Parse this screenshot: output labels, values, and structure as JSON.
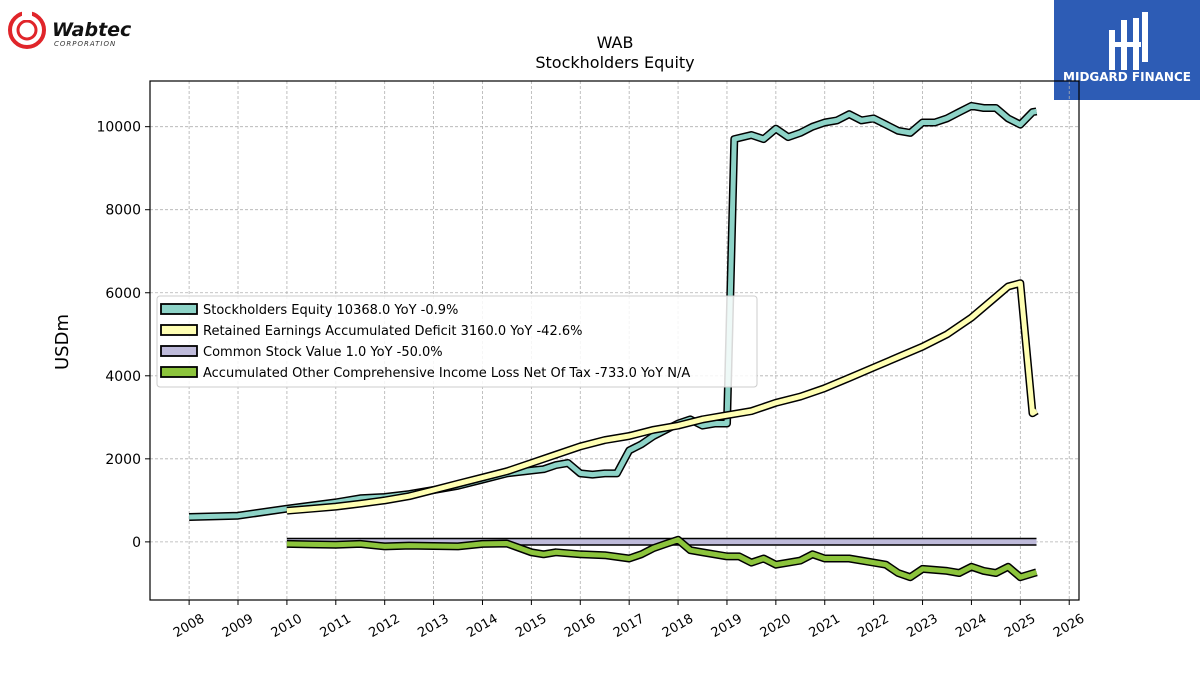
{
  "branding": {
    "left_logo_name": "Wabtec",
    "left_logo_sub": "CORPORATION",
    "right_logo_name": "MIDGARD FINANCE"
  },
  "chart_data": {
    "type": "line",
    "title": "WAB",
    "subtitle": "Stockholders  Equity",
    "ylabel": "USDm",
    "xlabel": "",
    "xlim": [
      2007.2,
      2026.2
    ],
    "ylim": [
      -1400,
      11100
    ],
    "yticks": [
      0,
      2000,
      4000,
      6000,
      8000,
      10000
    ],
    "xticks": [
      2008,
      2009,
      2010,
      2011,
      2012,
      2013,
      2014,
      2015,
      2016,
      2017,
      2018,
      2019,
      2020,
      2021,
      2022,
      2023,
      2024,
      2025,
      2026
    ],
    "grid": true,
    "legend_position": "center-left",
    "series": [
      {
        "name": "Stockholders Equity  10368.0 YoY -0.9%",
        "color": "#8dd3c7",
        "points": [
          [
            2008.0,
            600
          ],
          [
            2009.0,
            630
          ],
          [
            2010.0,
            800
          ],
          [
            2011.0,
            950
          ],
          [
            2011.5,
            1050
          ],
          [
            2012.0,
            1080
          ],
          [
            2012.5,
            1150
          ],
          [
            2013.0,
            1250
          ],
          [
            2013.5,
            1350
          ],
          [
            2014.0,
            1500
          ],
          [
            2014.5,
            1650
          ],
          [
            2015.0,
            1720
          ],
          [
            2015.25,
            1750
          ],
          [
            2015.5,
            1850
          ],
          [
            2015.75,
            1900
          ],
          [
            2016.0,
            1650
          ],
          [
            2016.25,
            1620
          ],
          [
            2016.5,
            1650
          ],
          [
            2016.75,
            1650
          ],
          [
            2017.0,
            2200
          ],
          [
            2017.25,
            2350
          ],
          [
            2017.5,
            2550
          ],
          [
            2017.75,
            2700
          ],
          [
            2018.0,
            2850
          ],
          [
            2018.25,
            2950
          ],
          [
            2018.5,
            2800
          ],
          [
            2018.75,
            2850
          ],
          [
            2019.0,
            2850
          ],
          [
            2019.15,
            9700
          ],
          [
            2019.5,
            9800
          ],
          [
            2019.75,
            9700
          ],
          [
            2020.0,
            9950
          ],
          [
            2020.25,
            9750
          ],
          [
            2020.5,
            9850
          ],
          [
            2020.75,
            10000
          ],
          [
            2021.0,
            10100
          ],
          [
            2021.25,
            10150
          ],
          [
            2021.5,
            10300
          ],
          [
            2021.75,
            10150
          ],
          [
            2022.0,
            10200
          ],
          [
            2022.25,
            10050
          ],
          [
            2022.5,
            9900
          ],
          [
            2022.75,
            9850
          ],
          [
            2023.0,
            10100
          ],
          [
            2023.25,
            10100
          ],
          [
            2023.5,
            10200
          ],
          [
            2023.75,
            10350
          ],
          [
            2024.0,
            10500
          ],
          [
            2024.25,
            10450
          ],
          [
            2024.5,
            10450
          ],
          [
            2024.75,
            10200
          ],
          [
            2025.0,
            10050
          ],
          [
            2025.25,
            10350
          ],
          [
            2025.33,
            10368
          ]
        ]
      },
      {
        "name": "Retained Earnings Accumulated Deficit  3160.0 YoY -42.6%",
        "color": "#ffffb3",
        "points": [
          [
            2010.0,
            750
          ],
          [
            2010.5,
            800
          ],
          [
            2011.0,
            850
          ],
          [
            2011.5,
            920
          ],
          [
            2012.0,
            1000
          ],
          [
            2012.5,
            1100
          ],
          [
            2013.0,
            1250
          ],
          [
            2013.5,
            1400
          ],
          [
            2014.0,
            1550
          ],
          [
            2014.5,
            1700
          ],
          [
            2015.0,
            1900
          ],
          [
            2015.5,
            2100
          ],
          [
            2016.0,
            2300
          ],
          [
            2016.5,
            2450
          ],
          [
            2017.0,
            2550
          ],
          [
            2017.5,
            2700
          ],
          [
            2018.0,
            2800
          ],
          [
            2018.5,
            2950
          ],
          [
            2019.0,
            3050
          ],
          [
            2019.5,
            3150
          ],
          [
            2020.0,
            3350
          ],
          [
            2020.5,
            3500
          ],
          [
            2021.0,
            3700
          ],
          [
            2021.5,
            3950
          ],
          [
            2022.0,
            4200
          ],
          [
            2022.5,
            4450
          ],
          [
            2023.0,
            4700
          ],
          [
            2023.5,
            5000
          ],
          [
            2024.0,
            5400
          ],
          [
            2024.5,
            5900
          ],
          [
            2024.75,
            6150
          ],
          [
            2025.0,
            6230
          ],
          [
            2025.25,
            3100
          ],
          [
            2025.33,
            3160
          ]
        ]
      },
      {
        "name": "Common Stock Value  1.0 YoY -50.0%",
        "color": "#bebada",
        "points": [
          [
            2010.0,
            2
          ],
          [
            2025.33,
            1
          ]
        ]
      },
      {
        "name": "Accumulated Other Comprehensive Income Loss Net Of Tax  -733.0 YoY N/A",
        "color": "#8cc43c",
        "points": [
          [
            2010.0,
            -50
          ],
          [
            2010.5,
            -60
          ],
          [
            2011.0,
            -70
          ],
          [
            2011.5,
            -50
          ],
          [
            2012.0,
            -110
          ],
          [
            2012.5,
            -90
          ],
          [
            2013.0,
            -100
          ],
          [
            2013.5,
            -110
          ],
          [
            2014.0,
            -50
          ],
          [
            2014.5,
            -40
          ],
          [
            2015.0,
            -250
          ],
          [
            2015.25,
            -300
          ],
          [
            2015.5,
            -250
          ],
          [
            2016.0,
            -300
          ],
          [
            2016.5,
            -320
          ],
          [
            2017.0,
            -400
          ],
          [
            2017.25,
            -300
          ],
          [
            2017.5,
            -150
          ],
          [
            2017.75,
            -50
          ],
          [
            2018.0,
            50
          ],
          [
            2018.25,
            -200
          ],
          [
            2018.5,
            -250
          ],
          [
            2019.0,
            -350
          ],
          [
            2019.25,
            -350
          ],
          [
            2019.5,
            -500
          ],
          [
            2019.75,
            -400
          ],
          [
            2020.0,
            -550
          ],
          [
            2020.5,
            -450
          ],
          [
            2020.75,
            -300
          ],
          [
            2021.0,
            -400
          ],
          [
            2021.5,
            -400
          ],
          [
            2022.0,
            -500
          ],
          [
            2022.25,
            -550
          ],
          [
            2022.5,
            -750
          ],
          [
            2022.75,
            -850
          ],
          [
            2023.0,
            -650
          ],
          [
            2023.5,
            -700
          ],
          [
            2023.75,
            -750
          ],
          [
            2024.0,
            -600
          ],
          [
            2024.25,
            -700
          ],
          [
            2024.5,
            -750
          ],
          [
            2024.75,
            -600
          ],
          [
            2025.0,
            -850
          ],
          [
            2025.33,
            -733
          ]
        ]
      }
    ]
  }
}
